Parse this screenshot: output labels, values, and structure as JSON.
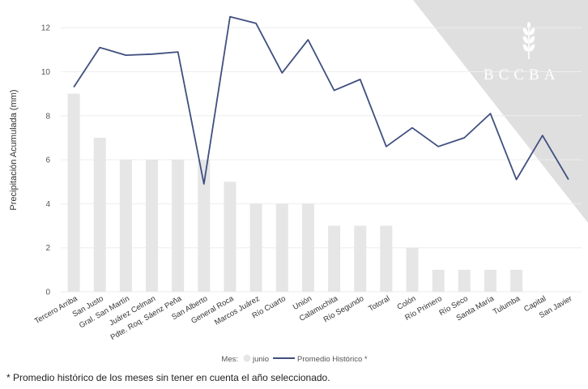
{
  "logo": {
    "text": "BCCBA"
  },
  "chart_data": {
    "type": "bar",
    "categories": [
      "Tercero Arriba",
      "San Justo",
      "Gral. San Martín",
      "Juárez Celman",
      "Pdte. Roq. Sáenz Peña",
      "San Alberto",
      "General Roca",
      "Marcos Juárez",
      "Río Cuarto",
      "Unión",
      "Calamuchita",
      "Río Segundo",
      "Totoral",
      "Colón",
      "Río Primero",
      "Río Seco",
      "Santa María",
      "Tulumba",
      "Capital",
      "San Javier"
    ],
    "series": [
      {
        "name": "junio",
        "kind": "bar",
        "color": "#e6e6e6",
        "values": [
          9,
          7,
          6,
          6,
          6,
          6,
          5,
          4,
          4,
          4,
          3,
          3,
          3,
          2,
          1,
          1,
          1,
          1,
          0,
          0
        ]
      },
      {
        "name": "Promedio Histórico *",
        "kind": "line",
        "color": "#3f4f7f",
        "values": [
          9.3,
          11.1,
          10.75,
          10.8,
          10.9,
          4.9,
          12.5,
          12.2,
          9.95,
          11.45,
          9.15,
          9.65,
          6.6,
          7.45,
          6.6,
          7.0,
          8.1,
          5.1,
          7.1,
          5.1
        ]
      }
    ],
    "title": "",
    "xlabel": "",
    "ylabel": "Precipitación Acumulada (mm)",
    "ylim": [
      0,
      13
    ],
    "yticks": [
      0,
      2,
      4,
      6,
      8,
      10,
      12
    ],
    "legend": {
      "title": "Mes:",
      "placement": "bottom-center"
    }
  },
  "footnote": "* Promedio histórico de los meses sin tener en cuenta el año seleccionado.",
  "colors": {
    "accent_triangle": "#e0dfdf",
    "axis_text": "#555555",
    "gridline": "#eeeeee"
  }
}
